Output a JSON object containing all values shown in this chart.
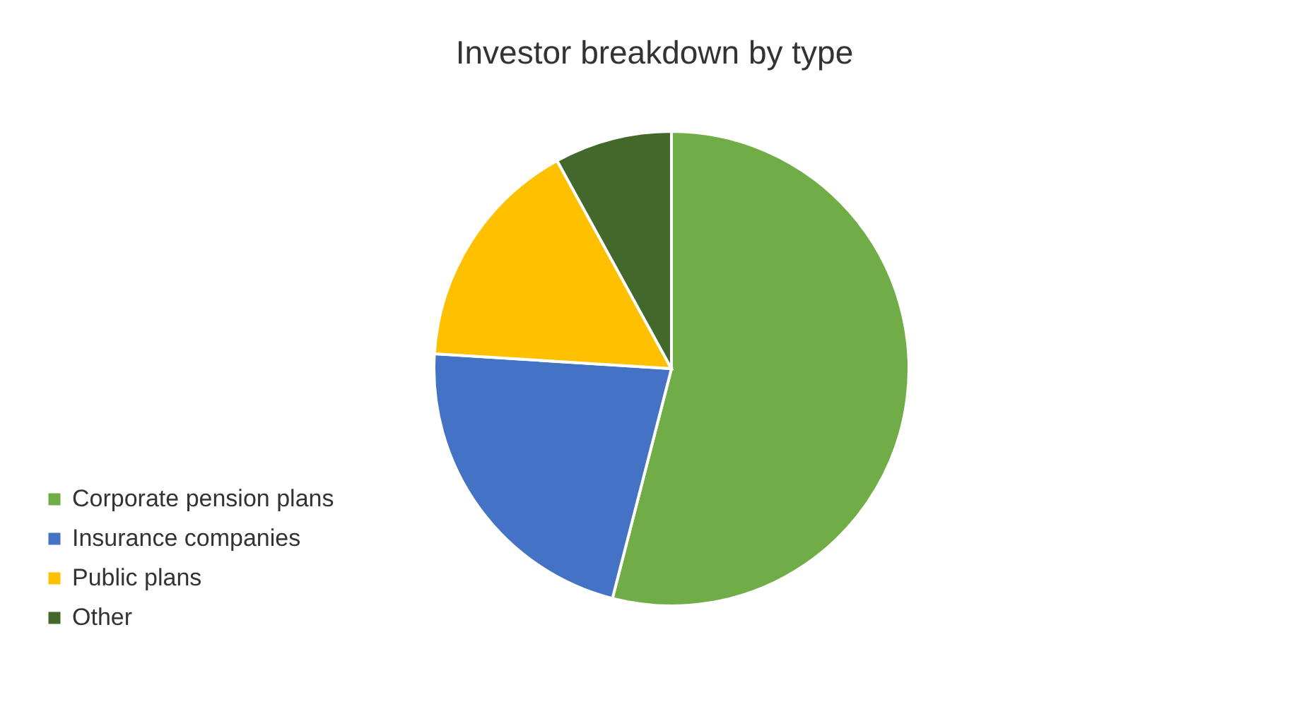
{
  "chart_data": {
    "type": "pie",
    "title": "Investor breakdown by type",
    "categories": [
      "Corporate pension plans",
      "Insurance companies",
      "Public plans",
      "Other"
    ],
    "values": [
      54,
      22,
      16,
      8
    ],
    "colors": [
      "#70ad47",
      "#4472c4",
      "#ffc000",
      "#43682b"
    ],
    "legend": "bottom left"
  }
}
